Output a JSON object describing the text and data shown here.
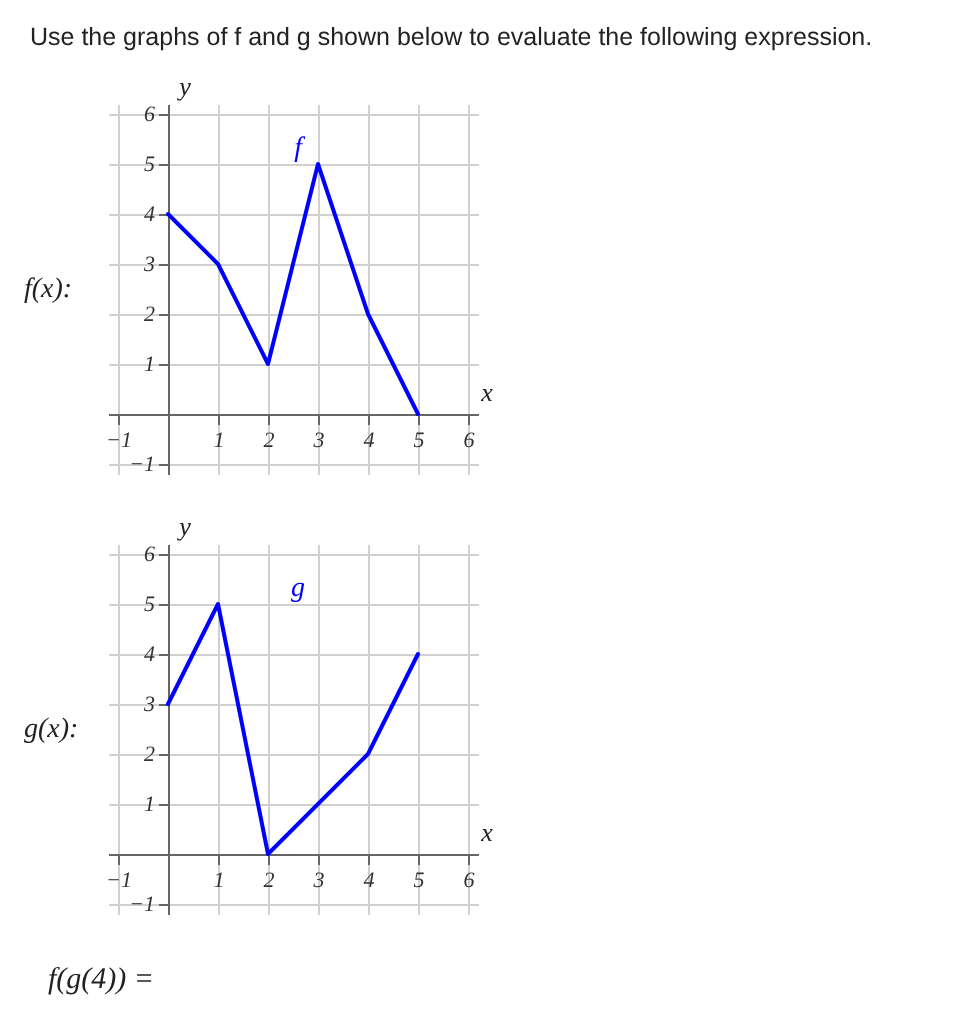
{
  "chart_data": [
    {
      "type": "line",
      "title": "Use the graphs of f and g shown below to evaluate the following expression.",
      "xlabel": "x",
      "ylabel": "y",
      "annotations": [
        "f(x):"
      ],
      "x": [
        0,
        1,
        2,
        3,
        4,
        5
      ],
      "series": [
        {
          "name": "f",
          "color": "#0000ff",
          "values": [
            4,
            3,
            1,
            5,
            2,
            0
          ]
        }
      ],
      "xlim": [
        -1.2,
        6.2
      ],
      "ylim": [
        -1.2,
        6.2
      ],
      "xticks": [
        -1,
        1,
        2,
        3,
        4,
        5,
        6
      ],
      "yticks": [
        -1,
        1,
        2,
        3,
        4,
        5,
        6
      ],
      "grid": true
    },
    {
      "type": "line",
      "xlabel": "x",
      "ylabel": "y",
      "annotations": [
        "g(x):",
        "f(g(4)) ="
      ],
      "x": [
        0,
        1,
        2,
        4,
        5
      ],
      "series": [
        {
          "name": "g",
          "color": "#0000ff",
          "values": [
            3,
            5,
            0,
            2,
            4
          ]
        }
      ],
      "xlim": [
        -1.2,
        6.2
      ],
      "ylim": [
        -1.2,
        6.2
      ],
      "xticks": [
        -1,
        1,
        2,
        3,
        4,
        5,
        6
      ],
      "yticks": [
        -1,
        1,
        2,
        3,
        4,
        5,
        6
      ],
      "grid": true
    }
  ]
}
